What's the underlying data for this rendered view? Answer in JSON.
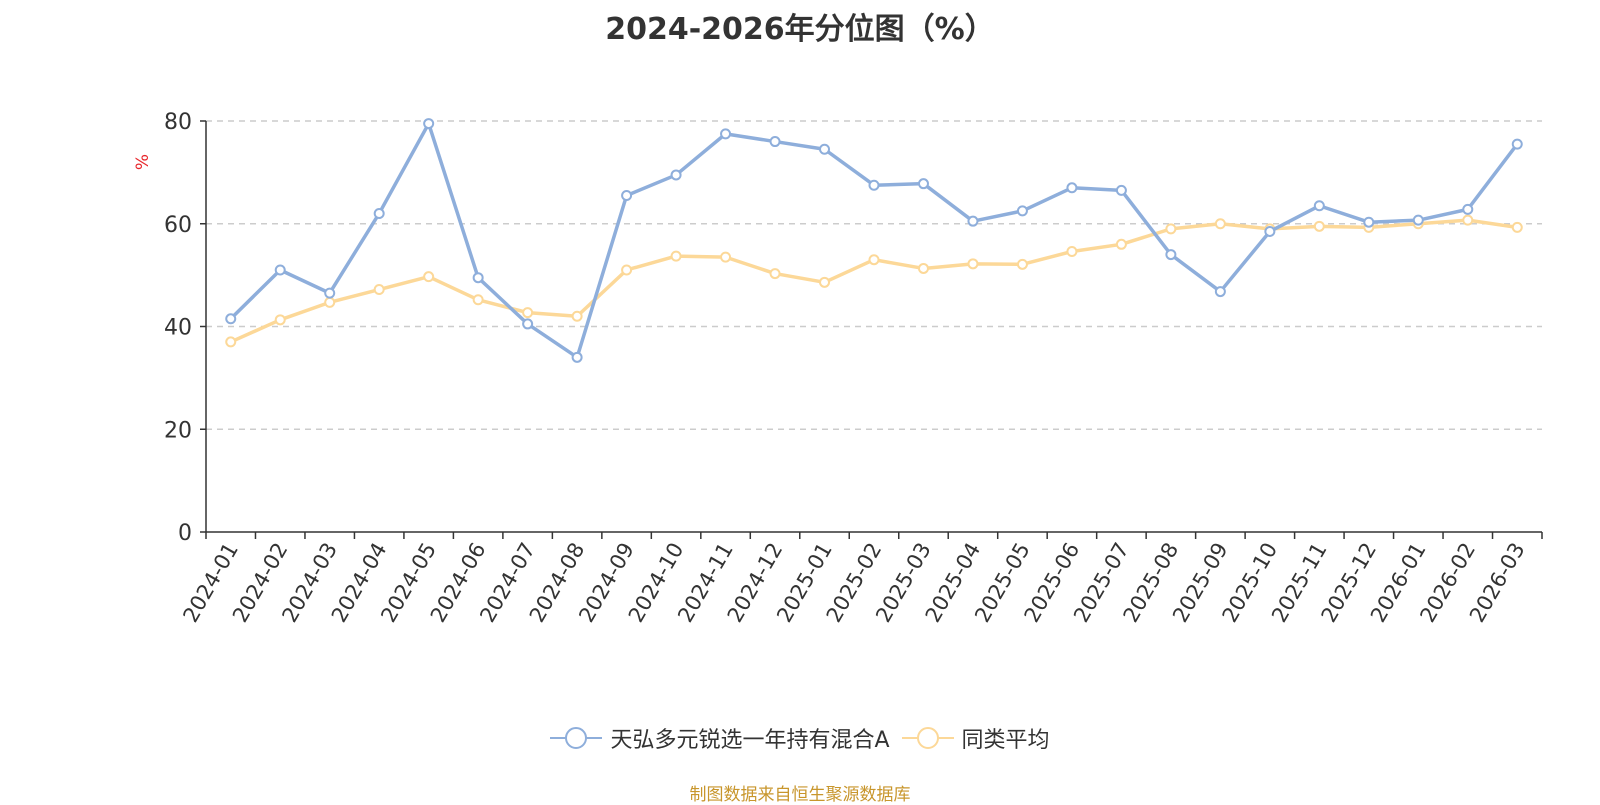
{
  "chart_data": {
    "type": "line",
    "title": "2024-2026年分位图（%）",
    "ylabel": "%",
    "xlabel": "",
    "ylim": [
      0,
      80
    ],
    "yticks": [
      0,
      20,
      40,
      60,
      80
    ],
    "grid": "horizontal dashed",
    "legend_position": "bottom",
    "categories": [
      "2024-01",
      "2024-02",
      "2024-03",
      "2024-04",
      "2024-05",
      "2024-06",
      "2024-07",
      "2024-08",
      "2024-09",
      "2024-10",
      "2024-11",
      "2024-12",
      "2025-01",
      "2025-02",
      "2025-03",
      "2025-04",
      "2025-05",
      "2025-06",
      "2025-07",
      "2025-08",
      "2025-09",
      "2025-10",
      "2025-11",
      "2025-12",
      "2026-01",
      "2026-02",
      "2026-03"
    ],
    "series": [
      {
        "name": "天弘多元锐选一年持有混合A",
        "color": "#8eaedb",
        "values": [
          41.5,
          51.0,
          46.5,
          62.0,
          79.5,
          49.5,
          40.5,
          34.0,
          65.5,
          69.5,
          77.5,
          76.0,
          74.5,
          67.5,
          67.8,
          60.5,
          62.5,
          67.0,
          66.5,
          54.0,
          46.8,
          58.5,
          63.5,
          60.3,
          60.7,
          62.8,
          75.5
        ]
      },
      {
        "name": "同类平均",
        "color": "#fcd898",
        "values": [
          37.0,
          41.3,
          44.7,
          47.2,
          49.7,
          45.2,
          42.7,
          42.0,
          51.0,
          53.7,
          53.5,
          50.3,
          48.6,
          53.0,
          51.3,
          52.2,
          52.1,
          54.6,
          56.0,
          59.0,
          60.0,
          59.0,
          59.5,
          59.3,
          60.0,
          60.7,
          59.3
        ]
      }
    ]
  },
  "source_note": "制图数据来自恒生聚源数据库"
}
